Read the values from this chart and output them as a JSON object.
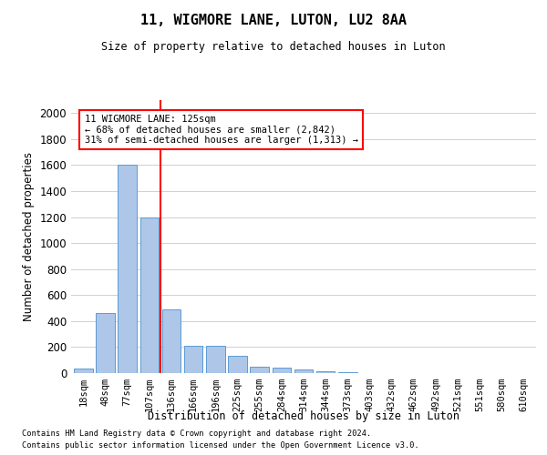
{
  "title": "11, WIGMORE LANE, LUTON, LU2 8AA",
  "subtitle": "Size of property relative to detached houses in Luton",
  "xlabel": "Distribution of detached houses by size in Luton",
  "ylabel": "Number of detached properties",
  "footnote1": "Contains HM Land Registry data © Crown copyright and database right 2024.",
  "footnote2": "Contains public sector information licensed under the Open Government Licence v3.0.",
  "categories": [
    "18sqm",
    "48sqm",
    "77sqm",
    "107sqm",
    "136sqm",
    "166sqm",
    "196sqm",
    "225sqm",
    "255sqm",
    "284sqm",
    "314sqm",
    "344sqm",
    "373sqm",
    "403sqm",
    "432sqm",
    "462sqm",
    "492sqm",
    "521sqm",
    "551sqm",
    "580sqm",
    "610sqm"
  ],
  "values": [
    35,
    460,
    1600,
    1200,
    490,
    210,
    210,
    130,
    50,
    40,
    25,
    15,
    10,
    0,
    0,
    0,
    0,
    0,
    0,
    0,
    0
  ],
  "bar_color": "#aec6e8",
  "bar_edge_color": "#5b9bd5",
  "grid_color": "#d0d0d0",
  "vline_color": "red",
  "vline_x": 3.5,
  "annotation_text": "11 WIGMORE LANE: 125sqm\n← 68% of detached houses are smaller (2,842)\n31% of semi-detached houses are larger (1,313) →",
  "annotation_box_color": "red",
  "ylim": [
    0,
    2100
  ],
  "yticks": [
    0,
    200,
    400,
    600,
    800,
    1000,
    1200,
    1400,
    1600,
    1800,
    2000
  ]
}
